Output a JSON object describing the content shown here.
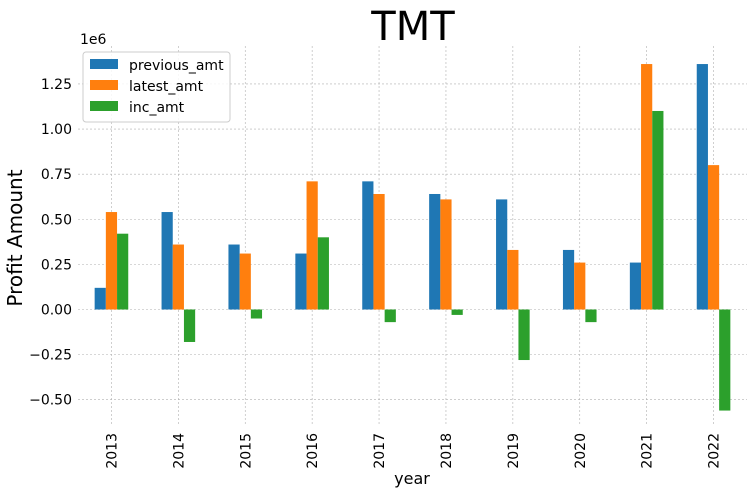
{
  "chart_data": {
    "type": "bar",
    "title": "TMT",
    "xlabel": "year",
    "ylabel": "Profit Amount",
    "y_offset_label": "1e6",
    "ylim": [
      -0.64,
      1.46
    ],
    "yticks": [
      -0.5,
      -0.25,
      0.0,
      0.25,
      0.5,
      0.75,
      1.0,
      1.25
    ],
    "ytick_labels": [
      "−0.50",
      "−0.25",
      "0.00",
      "0.25",
      "0.50",
      "0.75",
      "1.00",
      "1.25"
    ],
    "grid": true,
    "legend_position": "top-left",
    "categories": [
      "2013",
      "2014",
      "2015",
      "2016",
      "2017",
      "2018",
      "2019",
      "2020",
      "2021",
      "2022"
    ],
    "series": [
      {
        "name": "previous_amt",
        "color": "#1f77b4",
        "values": [
          0.12,
          0.54,
          0.36,
          0.31,
          0.71,
          0.64,
          0.61,
          0.33,
          0.26,
          1.36
        ]
      },
      {
        "name": "latest_amt",
        "color": "#ff7f0e",
        "values": [
          0.54,
          0.36,
          0.31,
          0.71,
          0.64,
          0.61,
          0.33,
          0.26,
          1.36,
          0.8
        ]
      },
      {
        "name": "inc_amt",
        "color": "#2ca02c",
        "values": [
          0.42,
          -0.18,
          -0.05,
          0.4,
          -0.07,
          -0.03,
          -0.28,
          -0.07,
          1.1,
          -0.56
        ]
      }
    ]
  }
}
